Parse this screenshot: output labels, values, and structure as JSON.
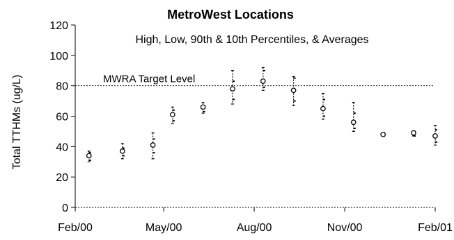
{
  "chart_data": {
    "type": "scatter",
    "title": "MetroWest Locations",
    "subtitle": "High, Low, 90th & 10th Percentiles, & Averages",
    "xlabel": "",
    "ylabel": "Total TTHMs (ug/L)",
    "ylim": [
      0,
      120
    ],
    "y_ticks": [
      0,
      20,
      40,
      60,
      80,
      100,
      120
    ],
    "x_range": [
      "2000-02-01",
      "2001-02-01"
    ],
    "x_tick_labels": [
      "Feb/00",
      "May/00",
      "Aug/00",
      "Nov/00",
      "Feb/01"
    ],
    "grid": false,
    "reference_line": {
      "label": "MWRA Target Level",
      "value": 80
    },
    "points": [
      {
        "date": "2000-02-15",
        "average": 34,
        "high": 37,
        "low": 30,
        "p90": 36,
        "p10": 31
      },
      {
        "date": "2000-03-20",
        "average": 37,
        "high": 42,
        "low": 32,
        "p90": 39,
        "p10": 34
      },
      {
        "date": "2000-04-20",
        "average": 41,
        "high": 49,
        "low": 32,
        "p90": 45,
        "p10": 36
      },
      {
        "date": "2000-05-10",
        "average": 61,
        "high": 66,
        "low": 55,
        "p90": 64,
        "p10": 57
      },
      {
        "date": "2000-06-10",
        "average": 66,
        "high": 69,
        "low": 62,
        "p90": 67,
        "p10": 63
      },
      {
        "date": "2000-07-10",
        "average": 78,
        "high": 90,
        "low": 68,
        "p90": 83,
        "p10": 71
      },
      {
        "date": "2000-08-10",
        "average": 83,
        "high": 92,
        "low": 77,
        "p90": 90,
        "p10": 79
      },
      {
        "date": "2000-09-10",
        "average": 77,
        "high": 86,
        "low": 67,
        "p90": 85,
        "p10": 70
      },
      {
        "date": "2000-10-10",
        "average": 65,
        "high": 75,
        "low": 58,
        "p90": 71,
        "p10": 60
      },
      {
        "date": "2000-11-10",
        "average": 56,
        "high": 69,
        "low": 50,
        "p90": 62,
        "p10": 52
      },
      {
        "date": "2000-12-10",
        "average": 48,
        "high": 49,
        "low": 47,
        "p90": 49,
        "p10": 47
      },
      {
        "date": "2001-01-10",
        "average": 49,
        "high": 50,
        "low": 47,
        "p90": 50,
        "p10": 47
      },
      {
        "date": "2001-02-01",
        "average": 47,
        "high": 54,
        "low": 41,
        "p90": 51,
        "p10": 43
      }
    ]
  }
}
